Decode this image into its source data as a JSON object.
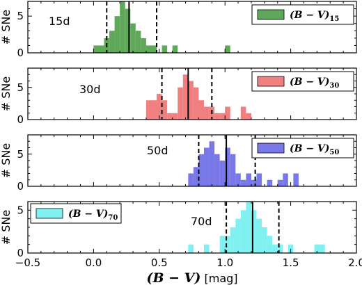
{
  "chart_data": {
    "type": "histogram",
    "x_axis": {
      "label_main": "(B − V)",
      "label_unit": " [mag]",
      "lim": [
        -0.5,
        2.0
      ],
      "ticks": [
        "−0.5",
        "0.0",
        "0.5",
        "1.0",
        "1.5",
        "2.0"
      ]
    },
    "y_label": "# SNe",
    "bin_width": 0.04,
    "panels": [
      {
        "tag": "15d",
        "legend": "(B − V)",
        "legend_sub": "15",
        "legend_pos": "top-right",
        "color": "#5fa85a",
        "ylim": [
          0,
          7
        ],
        "yticks": [
          0,
          5
        ],
        "bins": [
          {
            "x": 0.0,
            "count": 1
          },
          {
            "x": 0.04,
            "count": 1
          },
          {
            "x": 0.08,
            "count": 2
          },
          {
            "x": 0.12,
            "count": 3
          },
          {
            "x": 0.16,
            "count": 5
          },
          {
            "x": 0.2,
            "count": 7
          },
          {
            "x": 0.24,
            "count": 6
          },
          {
            "x": 0.28,
            "count": 4
          },
          {
            "x": 0.32,
            "count": 3
          },
          {
            "x": 0.36,
            "count": 2
          },
          {
            "x": 0.4,
            "count": 1
          },
          {
            "x": 0.44,
            "count": 1
          },
          {
            "x": 0.52,
            "count": 1
          },
          {
            "x": 0.6,
            "count": 1
          },
          {
            "x": 1.0,
            "count": 1
          }
        ],
        "median": 0.27,
        "dashed": [
          0.1,
          0.48
        ]
      },
      {
        "tag": "30d",
        "legend": "(B − V)",
        "legend_sub": "30",
        "legend_pos": "top-right",
        "color": "#f08080",
        "ylim": [
          0,
          8
        ],
        "yticks": [
          0,
          5
        ],
        "bins": [
          {
            "x": 0.4,
            "count": 3
          },
          {
            "x": 0.44,
            "count": 3
          },
          {
            "x": 0.48,
            "count": 4
          },
          {
            "x": 0.52,
            "count": 3
          },
          {
            "x": 0.56,
            "count": 1
          },
          {
            "x": 0.6,
            "count": 1
          },
          {
            "x": 0.64,
            "count": 5
          },
          {
            "x": 0.68,
            "count": 7
          },
          {
            "x": 0.72,
            "count": 6
          },
          {
            "x": 0.76,
            "count": 5
          },
          {
            "x": 0.8,
            "count": 3
          },
          {
            "x": 0.84,
            "count": 2
          },
          {
            "x": 0.88,
            "count": 2
          },
          {
            "x": 0.92,
            "count": 1
          },
          {
            "x": 0.96,
            "count": 1
          },
          {
            "x": 1.0,
            "count": 2
          },
          {
            "x": 1.12,
            "count": 2
          },
          {
            "x": 1.16,
            "count": 1
          }
        ],
        "median": 0.72,
        "dashed": [
          0.52,
          0.9
        ]
      },
      {
        "tag": "50d",
        "legend": "(B − V)",
        "legend_sub": "50",
        "legend_pos": "top-right",
        "color": "#7878e8",
        "ylim": [
          0,
          8
        ],
        "yticks": [
          0,
          5
        ],
        "bins": [
          {
            "x": 0.72,
            "count": 2
          },
          {
            "x": 0.76,
            "count": 3
          },
          {
            "x": 0.8,
            "count": 5
          },
          {
            "x": 0.84,
            "count": 6
          },
          {
            "x": 0.88,
            "count": 7
          },
          {
            "x": 0.92,
            "count": 5
          },
          {
            "x": 0.96,
            "count": 4
          },
          {
            "x": 1.0,
            "count": 6
          },
          {
            "x": 1.04,
            "count": 5
          },
          {
            "x": 1.08,
            "count": 2
          },
          {
            "x": 1.12,
            "count": 1
          },
          {
            "x": 1.16,
            "count": 2
          },
          {
            "x": 1.2,
            "count": 1
          },
          {
            "x": 1.24,
            "count": 2
          },
          {
            "x": 1.32,
            "count": 1
          },
          {
            "x": 1.4,
            "count": 1
          },
          {
            "x": 1.44,
            "count": 2
          },
          {
            "x": 1.52,
            "count": 2
          }
        ],
        "median": 1.01,
        "dashed": [
          0.8,
          1.23
        ]
      },
      {
        "tag": "70d",
        "legend": "(B − V)",
        "legend_sub": "70",
        "legend_pos": "top-left",
        "color": "#80f0f0",
        "ylim": [
          0,
          6
        ],
        "yticks": [
          0,
          5
        ],
        "bins": [
          {
            "x": 0.72,
            "count": 1
          },
          {
            "x": 0.84,
            "count": 1
          },
          {
            "x": 0.96,
            "count": 2
          },
          {
            "x": 1.0,
            "count": 2
          },
          {
            "x": 1.04,
            "count": 3
          },
          {
            "x": 1.08,
            "count": 4
          },
          {
            "x": 1.12,
            "count": 5
          },
          {
            "x": 1.16,
            "count": 6
          },
          {
            "x": 1.2,
            "count": 5
          },
          {
            "x": 1.24,
            "count": 4
          },
          {
            "x": 1.28,
            "count": 3
          },
          {
            "x": 1.32,
            "count": 2
          },
          {
            "x": 1.36,
            "count": 1
          },
          {
            "x": 1.4,
            "count": 1
          },
          {
            "x": 1.48,
            "count": 1
          },
          {
            "x": 1.68,
            "count": 1
          },
          {
            "x": 1.72,
            "count": 1
          }
        ],
        "median": 1.21,
        "dashed": [
          1.01,
          1.41
        ]
      }
    ]
  }
}
